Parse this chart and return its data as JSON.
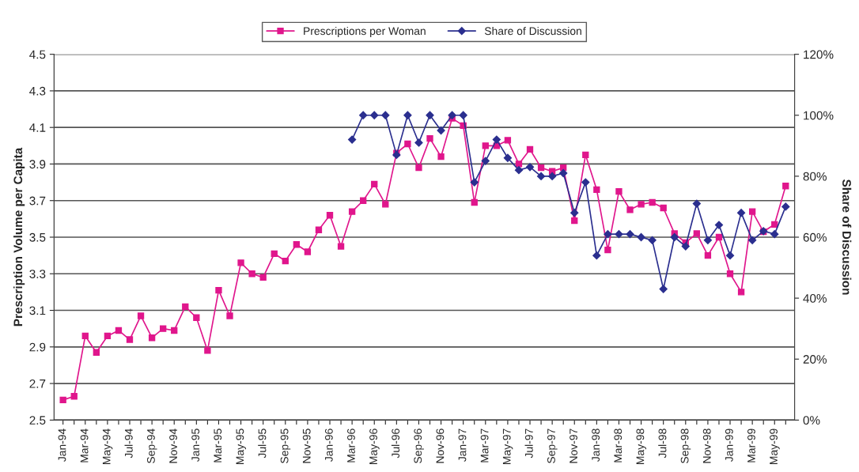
{
  "chart_data": {
    "type": "line",
    "ylabel": "Prescription Volume per Capita",
    "y2label": "Share of Discussion",
    "categories": [
      "Jan-94",
      null,
      "Mar-94",
      null,
      "May-94",
      null,
      "Jul-94",
      null,
      "Sep-94",
      null,
      "Nov-94",
      null,
      "Jan-95",
      null,
      "Mar-95",
      null,
      "May-95",
      null,
      "Jul-95",
      null,
      "Sep-95",
      null,
      "Nov-95",
      null,
      "Jan-96",
      null,
      "Mar-96",
      null,
      "May-96",
      null,
      "Jul-96",
      null,
      "Sep-96",
      null,
      "Nov-96",
      null,
      "Jan-97",
      null,
      "Mar-97",
      null,
      "May-97",
      null,
      "Jul-97",
      null,
      "Sep-97",
      null,
      "Nov-97",
      null,
      "Jan-98",
      null,
      "Mar-98",
      null,
      "May-98",
      null,
      "Jul-98",
      null,
      "Sep-98",
      null,
      "Nov-98",
      null,
      "Jan-99",
      null,
      "Mar-99",
      null,
      "May-99",
      null
    ],
    "series": [
      {
        "name": "Prescriptions per Woman",
        "color": "#e0168c",
        "marker": "square",
        "values": [
          2.61,
          2.63,
          2.96,
          2.87,
          2.96,
          2.99,
          2.94,
          3.07,
          2.95,
          3.0,
          2.99,
          3.12,
          3.06,
          2.88,
          3.21,
          3.07,
          3.36,
          3.3,
          3.28,
          3.41,
          3.37,
          3.46,
          3.42,
          3.54,
          3.62,
          3.45,
          3.64,
          3.7,
          3.79,
          3.68,
          3.96,
          4.01,
          3.88,
          4.04,
          3.94,
          4.15,
          4.11,
          3.69,
          4.0,
          4.0,
          4.03,
          3.9,
          3.98,
          3.88,
          3.86,
          3.88,
          3.59,
          3.95,
          3.76,
          3.43,
          3.75,
          3.65,
          3.68,
          3.69,
          3.66,
          3.52,
          3.47,
          3.52,
          3.4,
          3.5,
          3.3,
          3.2,
          3.64,
          3.53,
          3.57,
          3.78
        ]
      },
      {
        "name": "Share of Discussion",
        "color": "#2b2f8f",
        "marker": "diamond",
        "axis": "y2",
        "values": [
          null,
          null,
          null,
          null,
          null,
          null,
          null,
          null,
          null,
          null,
          null,
          null,
          null,
          null,
          null,
          null,
          null,
          null,
          null,
          null,
          null,
          null,
          null,
          null,
          null,
          null,
          92,
          100,
          100,
          100,
          87,
          100,
          91,
          100,
          95,
          100,
          100,
          78,
          85,
          92,
          86,
          82,
          83,
          80,
          80,
          81,
          68,
          78,
          54,
          61,
          61,
          61,
          60,
          59,
          43,
          60,
          57,
          71,
          59,
          64,
          54,
          68,
          59,
          62,
          61,
          70
        ]
      }
    ],
    "ylim": [
      2.5,
      4.5
    ],
    "yticks": [
      2.5,
      2.7,
      2.9,
      3.1,
      3.3,
      3.5,
      3.7,
      3.9,
      4.1,
      4.3,
      4.5
    ],
    "y2lim": [
      0,
      120
    ],
    "y2ticks": [
      {
        "value": 0,
        "label": "0%"
      },
      {
        "value": 20,
        "label": "20%"
      },
      {
        "value": 40,
        "label": "40%"
      },
      {
        "value": 60,
        "label": "60%"
      },
      {
        "value": 80,
        "label": "80%"
      },
      {
        "value": 100,
        "label": "100%"
      },
      {
        "value": 120,
        "label": "120%"
      }
    ],
    "grid": "y",
    "legend": "top",
    "line_style": "solid"
  }
}
